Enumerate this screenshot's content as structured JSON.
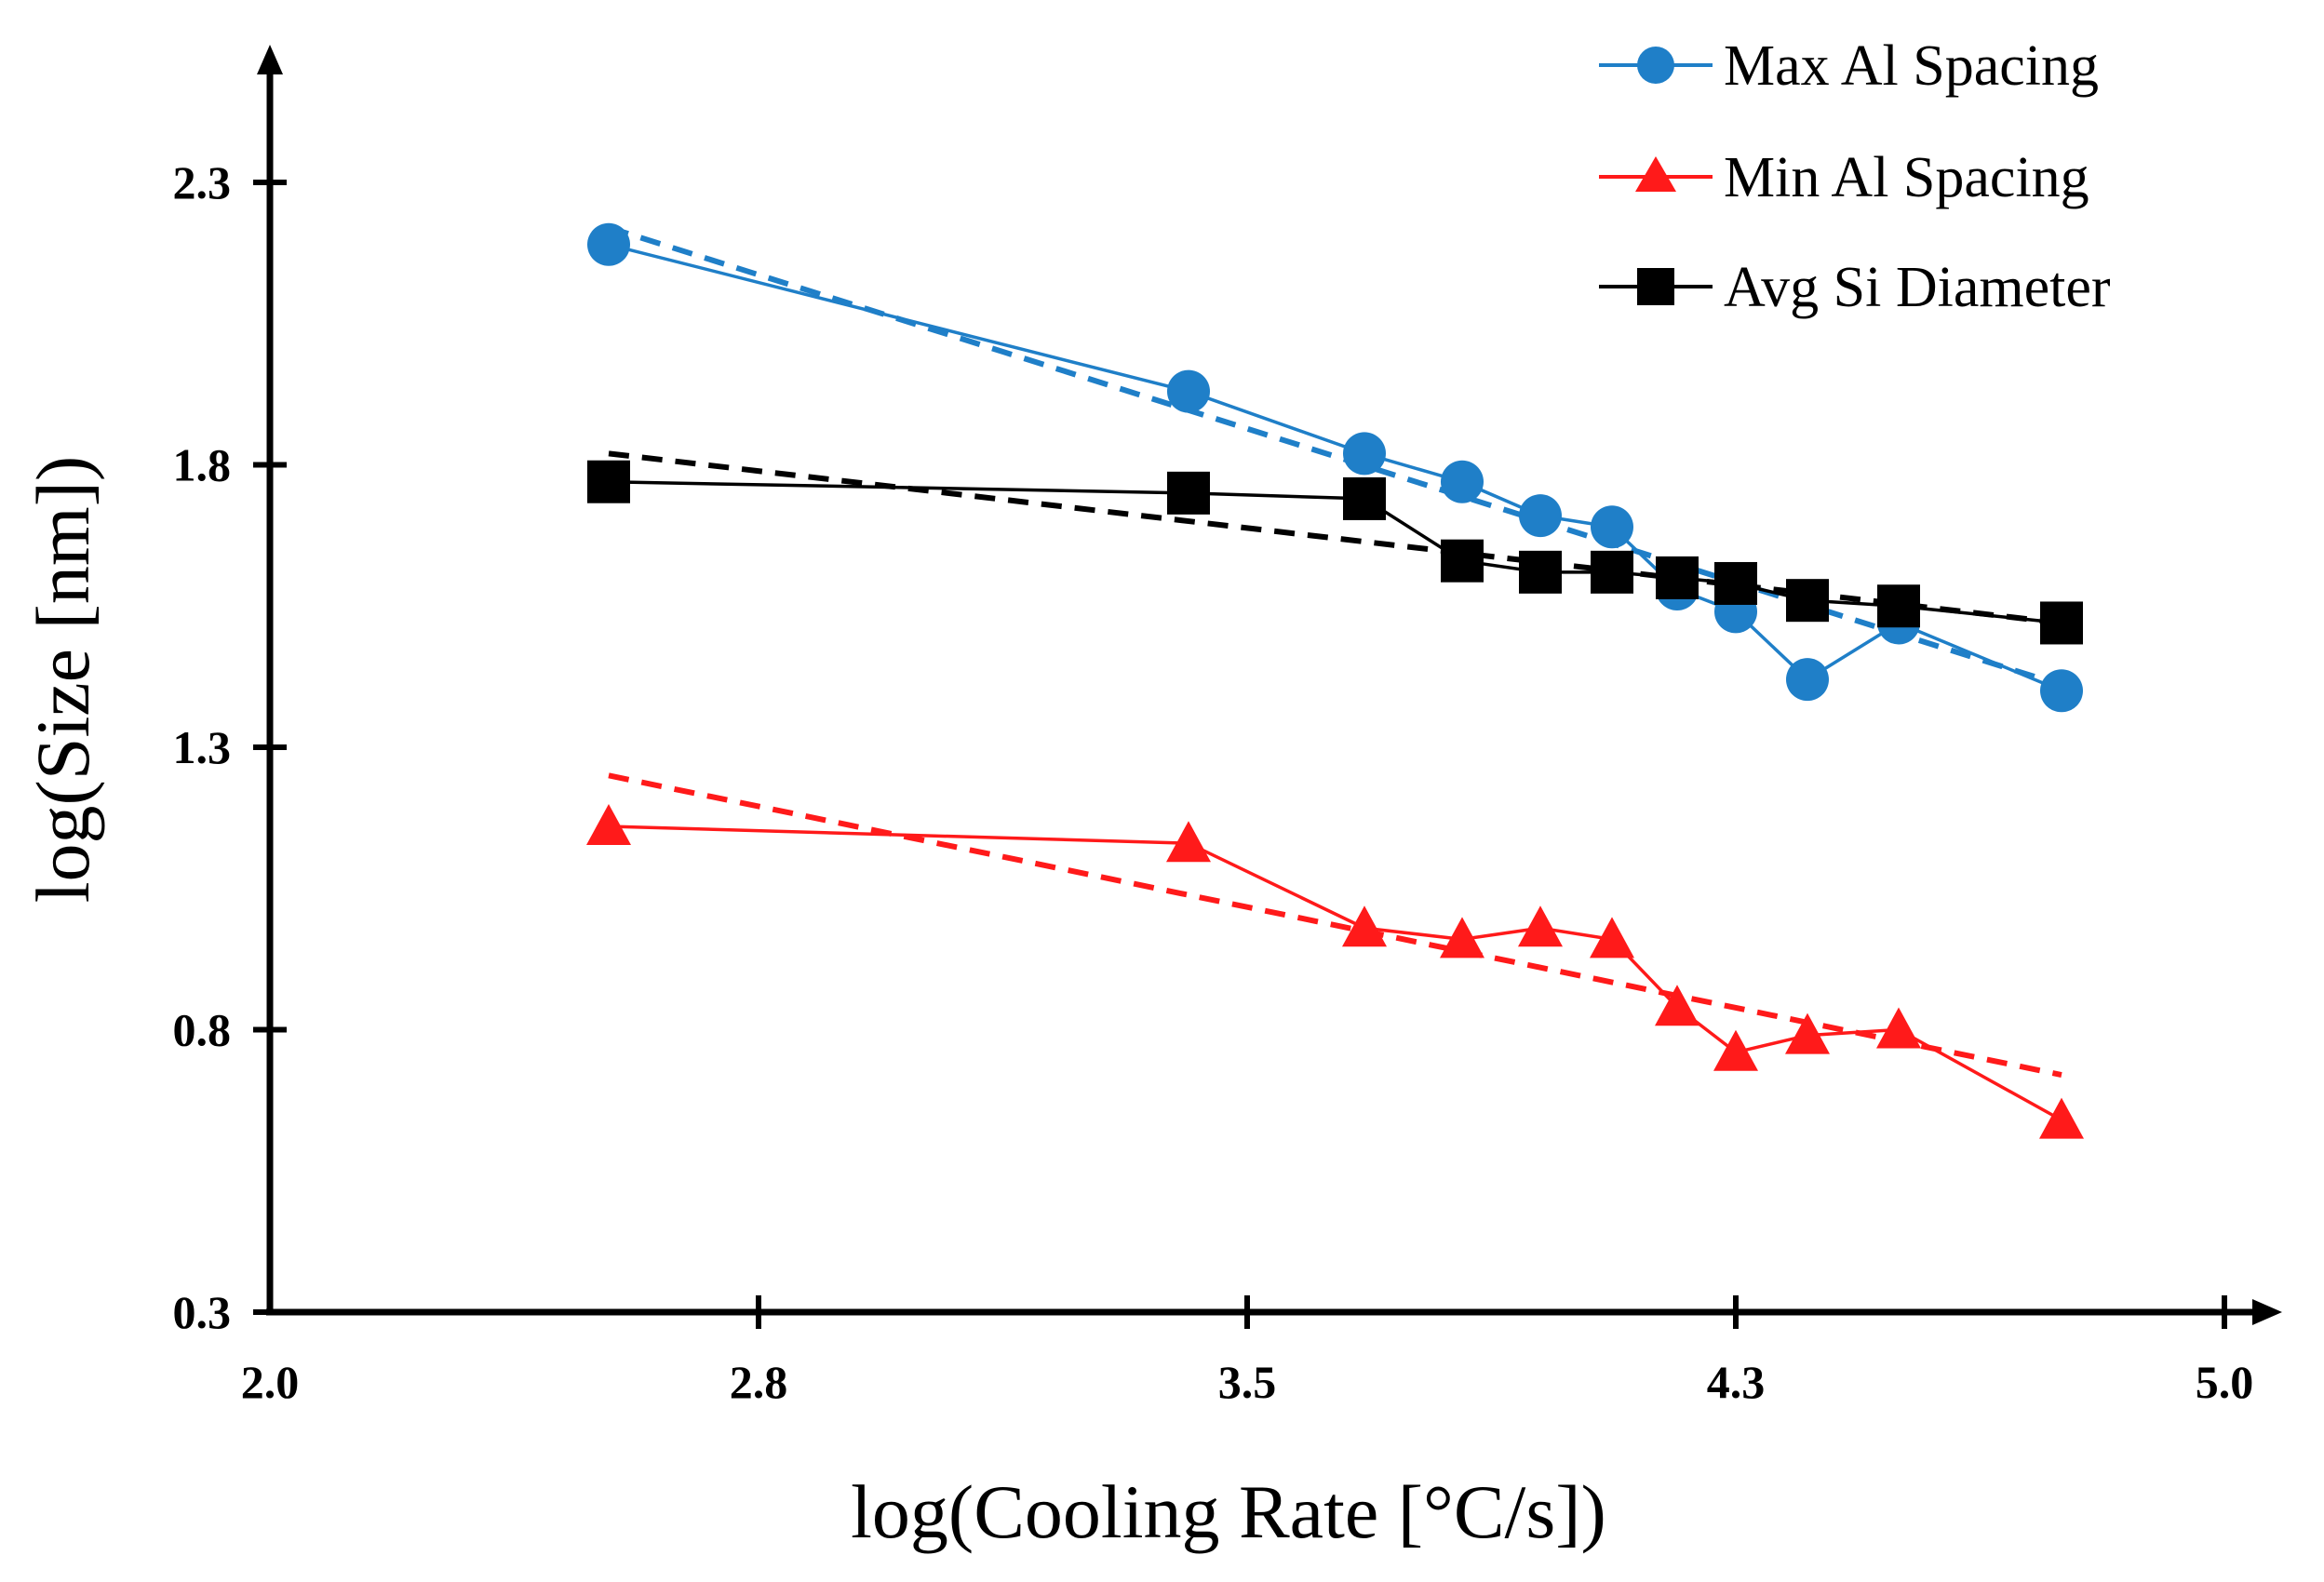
{
  "chart_data": {
    "type": "line",
    "title": "",
    "xlabel": "log(Cooling Rate [°C/s])",
    "ylabel": "log(Size [nm])",
    "xlim": [
      2.0,
      5.0
    ],
    "ylim": [
      0.3,
      2.5
    ],
    "xticks": [
      2.0,
      2.75,
      3.5,
      4.25,
      5.0
    ],
    "xtick_labels": [
      "2.0",
      "2.8",
      "3.5",
      "4.3",
      "5.0"
    ],
    "yticks": [
      0.3,
      0.8,
      1.3,
      1.8,
      2.3
    ],
    "ytick_labels": [
      "0.3",
      "0.8",
      "1.3",
      "1.8",
      "2.3"
    ],
    "grid": false,
    "legend_position": "top-right",
    "series": [
      {
        "name": "Max Al Spacing",
        "color": "#1f7fc8",
        "marker": "circle",
        "x": [
          2.52,
          3.41,
          3.68,
          3.83,
          3.95,
          4.06,
          4.16,
          4.25,
          4.36,
          4.5,
          4.75
        ],
        "y": [
          2.19,
          1.93,
          1.82,
          1.77,
          1.71,
          1.69,
          1.58,
          1.54,
          1.42,
          1.52,
          1.4
        ],
        "trend": {
          "x": [
            2.52,
            4.75
          ],
          "y": [
            2.22,
            1.41
          ]
        }
      },
      {
        "name": "Min Al Spacing",
        "color": "#ff1a1a",
        "marker": "triangle",
        "x": [
          2.52,
          3.41,
          3.68,
          3.83,
          3.95,
          4.06,
          4.16,
          4.25,
          4.36,
          4.5,
          4.75
        ],
        "y": [
          1.16,
          1.13,
          0.98,
          0.96,
          0.98,
          0.96,
          0.84,
          0.76,
          0.79,
          0.8,
          0.64
        ],
        "trend": {
          "x": [
            2.52,
            4.75
          ],
          "y": [
            1.25,
            0.72
          ]
        }
      },
      {
        "name": "Avg Si Diameter",
        "color": "#000000",
        "marker": "square",
        "x": [
          2.52,
          3.41,
          3.68,
          3.83,
          3.95,
          4.06,
          4.16,
          4.25,
          4.36,
          4.5,
          4.75
        ],
        "y": [
          1.77,
          1.75,
          1.74,
          1.63,
          1.61,
          1.61,
          1.6,
          1.59,
          1.56,
          1.55,
          1.52
        ],
        "trend": {
          "x": [
            2.52,
            4.75
          ],
          "y": [
            1.82,
            1.52
          ]
        }
      }
    ]
  }
}
